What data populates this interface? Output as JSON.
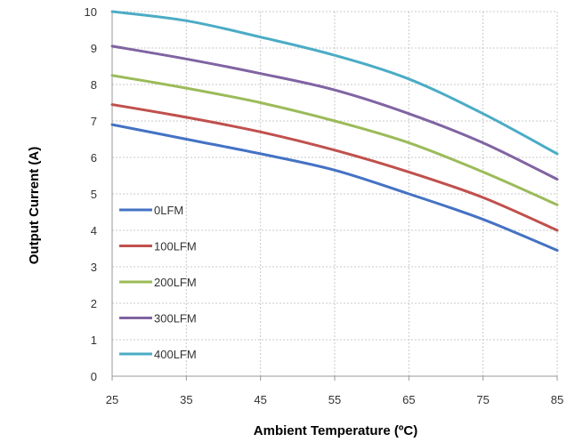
{
  "chart_data": {
    "type": "line",
    "title": "",
    "xlabel": "Ambient Temperature (ºC)",
    "ylabel": "Output Current (A)",
    "xlim": [
      25,
      85
    ],
    "ylim": [
      0,
      10
    ],
    "x_ticks": [
      "25",
      "35",
      "45",
      "55",
      "65",
      "75",
      "85"
    ],
    "y_ticks": [
      "0",
      "1",
      "2",
      "3",
      "4",
      "5",
      "6",
      "7",
      "8",
      "9",
      "10"
    ],
    "grid": true,
    "legend_position": "bottom-left",
    "series": [
      {
        "name": "0LFM",
        "color": "#4472C4",
        "x": [
          25,
          35,
          45,
          55,
          65,
          75,
          85
        ],
        "y": [
          6.9,
          6.5,
          6.1,
          5.65,
          5.0,
          4.3,
          3.45
        ]
      },
      {
        "name": "100LFM",
        "color": "#C0504D",
        "x": [
          25,
          35,
          45,
          55,
          65,
          75,
          85
        ],
        "y": [
          7.45,
          7.1,
          6.7,
          6.2,
          5.6,
          4.9,
          4.0
        ]
      },
      {
        "name": "200LFM",
        "color": "#9BBB59",
        "x": [
          25,
          35,
          45,
          55,
          65,
          75,
          85
        ],
        "y": [
          8.25,
          7.9,
          7.5,
          7.0,
          6.4,
          5.6,
          4.7
        ]
      },
      {
        "name": "300LFM",
        "color": "#8064A2",
        "x": [
          25,
          35,
          45,
          55,
          65,
          75,
          85
        ],
        "y": [
          9.05,
          8.7,
          8.3,
          7.85,
          7.2,
          6.4,
          5.4
        ]
      },
      {
        "name": "400LFM",
        "color": "#4BACC6",
        "x": [
          25,
          35,
          45,
          55,
          65,
          75,
          85
        ],
        "y": [
          10.0,
          9.75,
          9.3,
          8.8,
          8.15,
          7.2,
          6.1
        ]
      }
    ]
  }
}
